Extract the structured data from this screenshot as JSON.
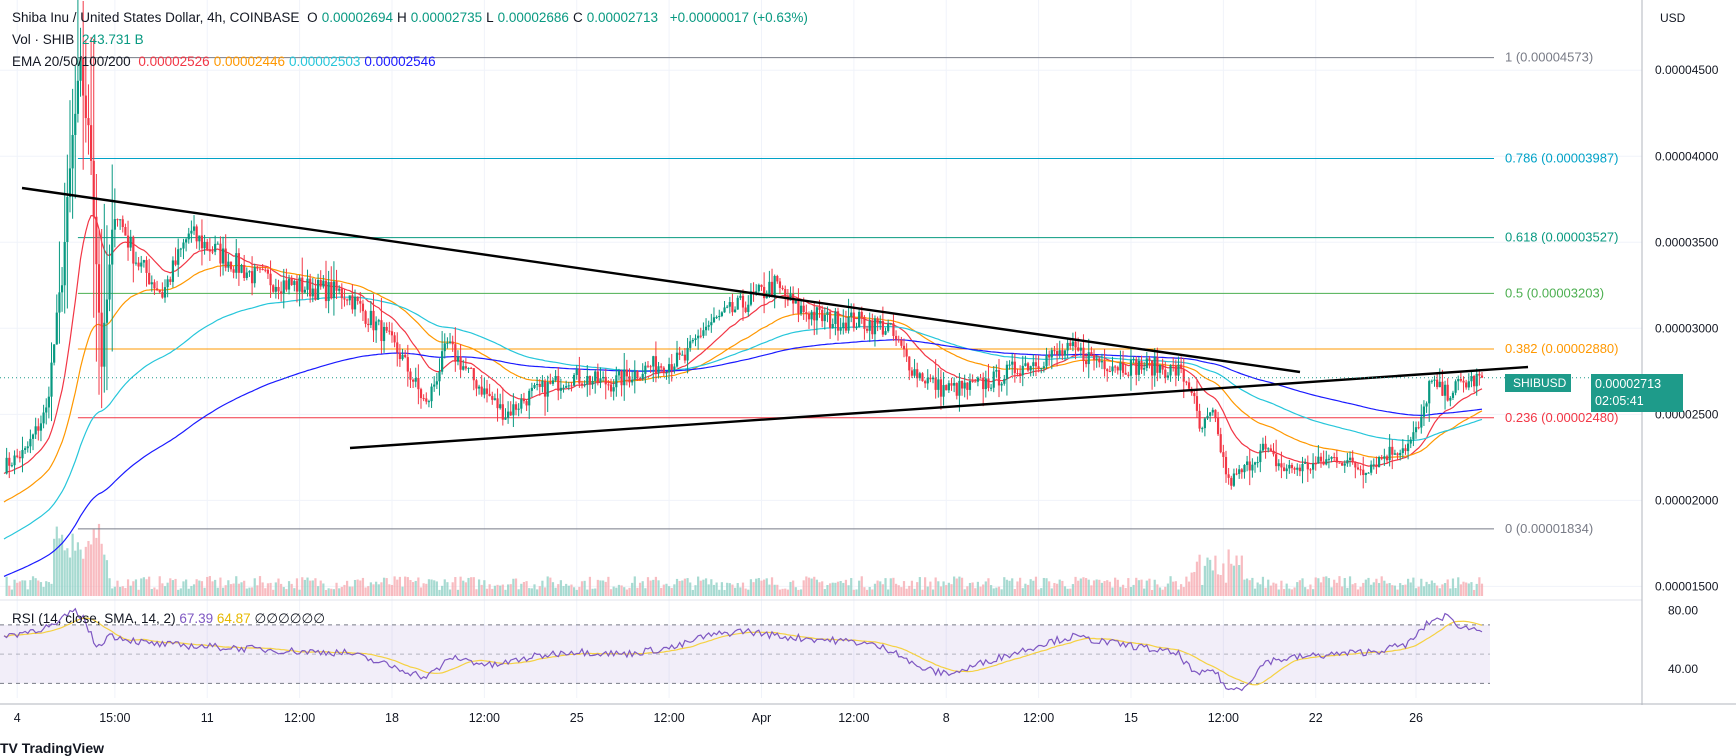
{
  "header": {
    "title": "Shiba Inu / United States Dollar, 4h, COINBASE",
    "ohlc": [
      {
        "k": "O",
        "v": "0.00002694"
      },
      {
        "k": "H",
        "v": "0.00002735"
      },
      {
        "k": "L",
        "v": "0.00002686"
      },
      {
        "k": "C",
        "v": "0.00002713"
      }
    ],
    "change": "+0.00000017 (+0.63%)",
    "vol_label": "Vol · SHIB",
    "vol_value": "243.731 B",
    "ema_label": "EMA 20/50/100/200",
    "ema_values": [
      {
        "v": "0.00002526",
        "color": "#f23645"
      },
      {
        "v": "0.00002446",
        "color": "#ff9800"
      },
      {
        "v": "0.00002503",
        "color": "#26c6da"
      },
      {
        "v": "0.00002546",
        "color": "#1a1aff"
      }
    ]
  },
  "rsi": {
    "label": "RSI (14, close, SMA, 14, 2)",
    "value": "67.39",
    "sma_value": "64.87",
    "extras": [
      "∅",
      "∅",
      "∅",
      "∅",
      "∅",
      "∅"
    ],
    "tick_80": "80.00",
    "tick_40": "40.00"
  },
  "currency": "USD",
  "price_tag": {
    "symbol": "SHIBUSD",
    "price": "0.00002713",
    "countdown": "02:05:41"
  },
  "chart_data": {
    "type": "candlestick",
    "y_ticks": [
      "0.00004500",
      "0.00004000",
      "0.00003500",
      "0.00003000",
      "0.00002500",
      "0.00002000",
      "0.00001500"
    ],
    "y_tick_values": [
      4.5e-05,
      4e-05,
      3.5e-05,
      3e-05,
      2.5e-05,
      2e-05,
      1.5e-05
    ],
    "x_ticks": [
      "4",
      "15:00",
      "11",
      "12:00",
      "18",
      "12:00",
      "25",
      "12:00",
      "Apr",
      "12:00",
      "8",
      "12:00",
      "15",
      "12:00",
      "22",
      "26"
    ],
    "fib_levels": [
      {
        "label": "1 (0.00004573)",
        "value": 4.573e-05,
        "color": "#787b86"
      },
      {
        "label": "0.786 (0.00003987)",
        "value": 3.987e-05,
        "color": "#00a2c7"
      },
      {
        "label": "0.618 (0.00003527)",
        "value": 3.527e-05,
        "color": "#089981"
      },
      {
        "label": "0.5 (0.00003203)",
        "value": 3.203e-05,
        "color": "#4caf50"
      },
      {
        "label": "0.382 (0.00002880)",
        "value": 2.88e-05,
        "color": "#ff9800"
      },
      {
        "label": "0.236 (0.00002480)",
        "value": 2.48e-05,
        "color": "#f23645"
      },
      {
        "label": "0 (0.00001834)",
        "value": 1.834e-05,
        "color": "#787b86"
      }
    ],
    "last_price": 2.713e-05,
    "keypoints": [
      [
        0,
        2.2e-05
      ],
      [
        8,
        2.28e-05
      ],
      [
        16,
        2.52e-05
      ],
      [
        22,
        3.3e-05
      ],
      [
        26,
        4.1e-05
      ],
      [
        29,
        4.5e-05
      ],
      [
        33,
        4e-05
      ],
      [
        37,
        2.8e-05
      ],
      [
        42,
        3.7e-05
      ],
      [
        50,
        3.4e-05
      ],
      [
        60,
        3.2e-05
      ],
      [
        70,
        3.55e-05
      ],
      [
        80,
        3.45e-05
      ],
      [
        95,
        3.3e-05
      ],
      [
        110,
        3.25e-05
      ],
      [
        130,
        3.2e-05
      ],
      [
        142,
        3e-05
      ],
      [
        150,
        2.85e-05
      ],
      [
        160,
        2.55e-05
      ],
      [
        168,
        2.9e-05
      ],
      [
        178,
        2.7e-05
      ],
      [
        190,
        2.5e-05
      ],
      [
        200,
        2.62e-05
      ],
      [
        215,
        2.72e-05
      ],
      [
        230,
        2.68e-05
      ],
      [
        245,
        2.78e-05
      ],
      [
        258,
        2.82e-05
      ],
      [
        265,
        3e-05
      ],
      [
        278,
        3.12e-05
      ],
      [
        292,
        3.25e-05
      ],
      [
        300,
        3.12e-05
      ],
      [
        312,
        3.05e-05
      ],
      [
        325,
        3.04e-05
      ],
      [
        335,
        3e-05
      ],
      [
        345,
        2.75e-05
      ],
      [
        355,
        2.65e-05
      ],
      [
        365,
        2.65e-05
      ],
      [
        375,
        2.7e-05
      ],
      [
        385,
        2.78e-05
      ],
      [
        395,
        2.83e-05
      ],
      [
        405,
        2.87e-05
      ],
      [
        412,
        2.83e-05
      ],
      [
        418,
        2.8e-05
      ],
      [
        425,
        2.78e-05
      ],
      [
        435,
        2.78e-05
      ],
      [
        445,
        2.75e-05
      ],
      [
        450,
        2.65e-05
      ],
      [
        453,
        2.4e-05
      ],
      [
        458,
        2.5e-05
      ],
      [
        464,
        2.1e-05
      ],
      [
        470,
        2.18e-05
      ],
      [
        477,
        2.3e-05
      ],
      [
        485,
        2.18e-05
      ],
      [
        495,
        2.2e-05
      ],
      [
        505,
        2.25e-05
      ],
      [
        515,
        2.18e-05
      ],
      [
        525,
        2.28e-05
      ],
      [
        532,
        2.32e-05
      ],
      [
        537,
        2.45e-05
      ],
      [
        540,
        2.68e-05
      ],
      [
        546,
        2.62e-05
      ],
      [
        553,
        2.68e-05
      ],
      [
        560,
        2.71e-05
      ]
    ],
    "rsi_keypoints": [
      [
        0,
        62
      ],
      [
        10,
        66
      ],
      [
        20,
        70
      ],
      [
        26,
        80
      ],
      [
        30,
        75
      ],
      [
        35,
        55
      ],
      [
        40,
        63
      ],
      [
        55,
        57
      ],
      [
        80,
        55
      ],
      [
        110,
        52
      ],
      [
        130,
        51
      ],
      [
        150,
        40
      ],
      [
        160,
        34
      ],
      [
        170,
        48
      ],
      [
        185,
        42
      ],
      [
        200,
        48
      ],
      [
        215,
        52
      ],
      [
        235,
        50
      ],
      [
        255,
        55
      ],
      [
        265,
        62
      ],
      [
        280,
        66
      ],
      [
        295,
        62
      ],
      [
        310,
        60
      ],
      [
        325,
        58
      ],
      [
        338,
        52
      ],
      [
        345,
        42
      ],
      [
        355,
        37
      ],
      [
        362,
        38
      ],
      [
        372,
        45
      ],
      [
        385,
        52
      ],
      [
        395,
        58
      ],
      [
        405,
        62
      ],
      [
        418,
        58
      ],
      [
        430,
        55
      ],
      [
        445,
        50
      ],
      [
        452,
        35
      ],
      [
        458,
        40
      ],
      [
        464,
        25
      ],
      [
        470,
        28
      ],
      [
        478,
        45
      ],
      [
        490,
        48
      ],
      [
        505,
        50
      ],
      [
        520,
        52
      ],
      [
        532,
        57
      ],
      [
        540,
        72
      ],
      [
        546,
        76
      ],
      [
        553,
        68
      ],
      [
        560,
        67
      ]
    ],
    "rsi_ylim": [
      20,
      85
    ],
    "series": [
      {
        "name": "EMA 20",
        "color": "#f23645",
        "period": 20
      },
      {
        "name": "EMA 50",
        "color": "#ff9800",
        "period": 50
      },
      {
        "name": "EMA 100",
        "color": "#26c6da",
        "period": 100
      },
      {
        "name": "EMA 200",
        "color": "#1a1aff",
        "period": 200
      }
    ]
  }
}
